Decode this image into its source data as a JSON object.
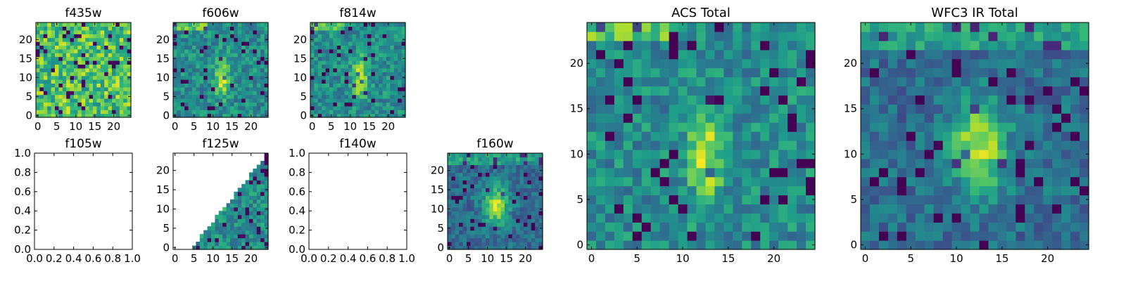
{
  "chart_data": [
    {
      "id": "f435w",
      "title": "f435w",
      "type": "heatmap",
      "kind": "image",
      "xlim": [
        -0.5,
        24.5
      ],
      "ylim": [
        -0.5,
        24.5
      ],
      "xticks": [
        0,
        5,
        10,
        15,
        20
      ],
      "yticks": [
        0,
        5,
        10,
        15,
        20
      ],
      "cmap": "viridis",
      "seed": 11,
      "structure": "noise"
    },
    {
      "id": "f606w",
      "title": "f606w",
      "type": "heatmap",
      "kind": "image",
      "xlim": [
        -0.5,
        24.5
      ],
      "ylim": [
        -0.5,
        24.5
      ],
      "xticks": [
        0,
        5,
        10,
        15,
        20
      ],
      "yticks": [
        0,
        5,
        10,
        15,
        20
      ],
      "cmap": "viridis",
      "seed": 23,
      "structure": "central-streak"
    },
    {
      "id": "f814w",
      "title": "f814w",
      "type": "heatmap",
      "kind": "image",
      "xlim": [
        -0.5,
        24.5
      ],
      "ylim": [
        -0.5,
        24.5
      ],
      "xticks": [
        0,
        5,
        10,
        15,
        20
      ],
      "yticks": [
        0,
        5,
        10,
        15,
        20
      ],
      "cmap": "viridis",
      "seed": 37,
      "structure": "central-streak"
    },
    {
      "id": "f105w",
      "title": "f105w",
      "type": "heatmap",
      "kind": "empty",
      "xlim": [
        0,
        1
      ],
      "ylim": [
        0,
        1
      ],
      "xticks": [
        "0.0",
        "0.2",
        "0.4",
        "0.6",
        "0.8",
        "1.0"
      ],
      "yticks": [
        "0.0",
        "0.2",
        "0.4",
        "0.6",
        "0.8",
        "1.0"
      ]
    },
    {
      "id": "f125w",
      "title": "f125w",
      "type": "heatmap",
      "kind": "image",
      "xlim": [
        -0.5,
        24.5
      ],
      "ylim": [
        -0.5,
        24.5
      ],
      "xticks": [
        0,
        5,
        10,
        15,
        20
      ],
      "yticks": [
        0,
        5,
        10,
        15,
        20
      ],
      "cmap": "viridis",
      "seed": 53,
      "structure": "wedge",
      "blank_region": "left of edge from (4.5, 0) to (24, 24)"
    },
    {
      "id": "f140w",
      "title": "f140w",
      "type": "heatmap",
      "kind": "empty",
      "xlim": [
        0,
        1
      ],
      "ylim": [
        0,
        1
      ],
      "xticks": [
        "0.0",
        "0.2",
        "0.4",
        "0.6",
        "0.8",
        "1.0"
      ],
      "yticks": [
        "0.0",
        "0.2",
        "0.4",
        "0.6",
        "0.8",
        "1.0"
      ]
    },
    {
      "id": "f160w",
      "title": "f160w",
      "type": "heatmap",
      "kind": "image",
      "xlim": [
        -0.5,
        24.5
      ],
      "ylim": [
        -0.5,
        24.5
      ],
      "xticks": [
        0,
        5,
        10,
        15,
        20
      ],
      "yticks": [
        0,
        5,
        10,
        15,
        20
      ],
      "cmap": "viridis",
      "seed": 71,
      "structure": "central-blob"
    },
    {
      "id": "acs",
      "title": "ACS Total",
      "type": "heatmap",
      "kind": "image",
      "xlim": [
        -0.5,
        24.5
      ],
      "ylim": [
        -0.5,
        24.5
      ],
      "xticks": [
        0,
        5,
        10,
        15,
        20
      ],
      "yticks": [
        0,
        5,
        10,
        15,
        20
      ],
      "cmap": "viridis",
      "seed": 89,
      "structure": "central-streak"
    },
    {
      "id": "wfc3",
      "title": "WFC3 IR Total",
      "type": "heatmap",
      "kind": "image",
      "xlim": [
        -0.5,
        24.5
      ],
      "ylim": [
        -0.5,
        24.5
      ],
      "xticks": [
        0,
        5,
        10,
        15,
        20
      ],
      "yticks": [
        0,
        5,
        10,
        15,
        20
      ],
      "cmap": "viridis",
      "seed": 97,
      "structure": "central-blob"
    }
  ]
}
